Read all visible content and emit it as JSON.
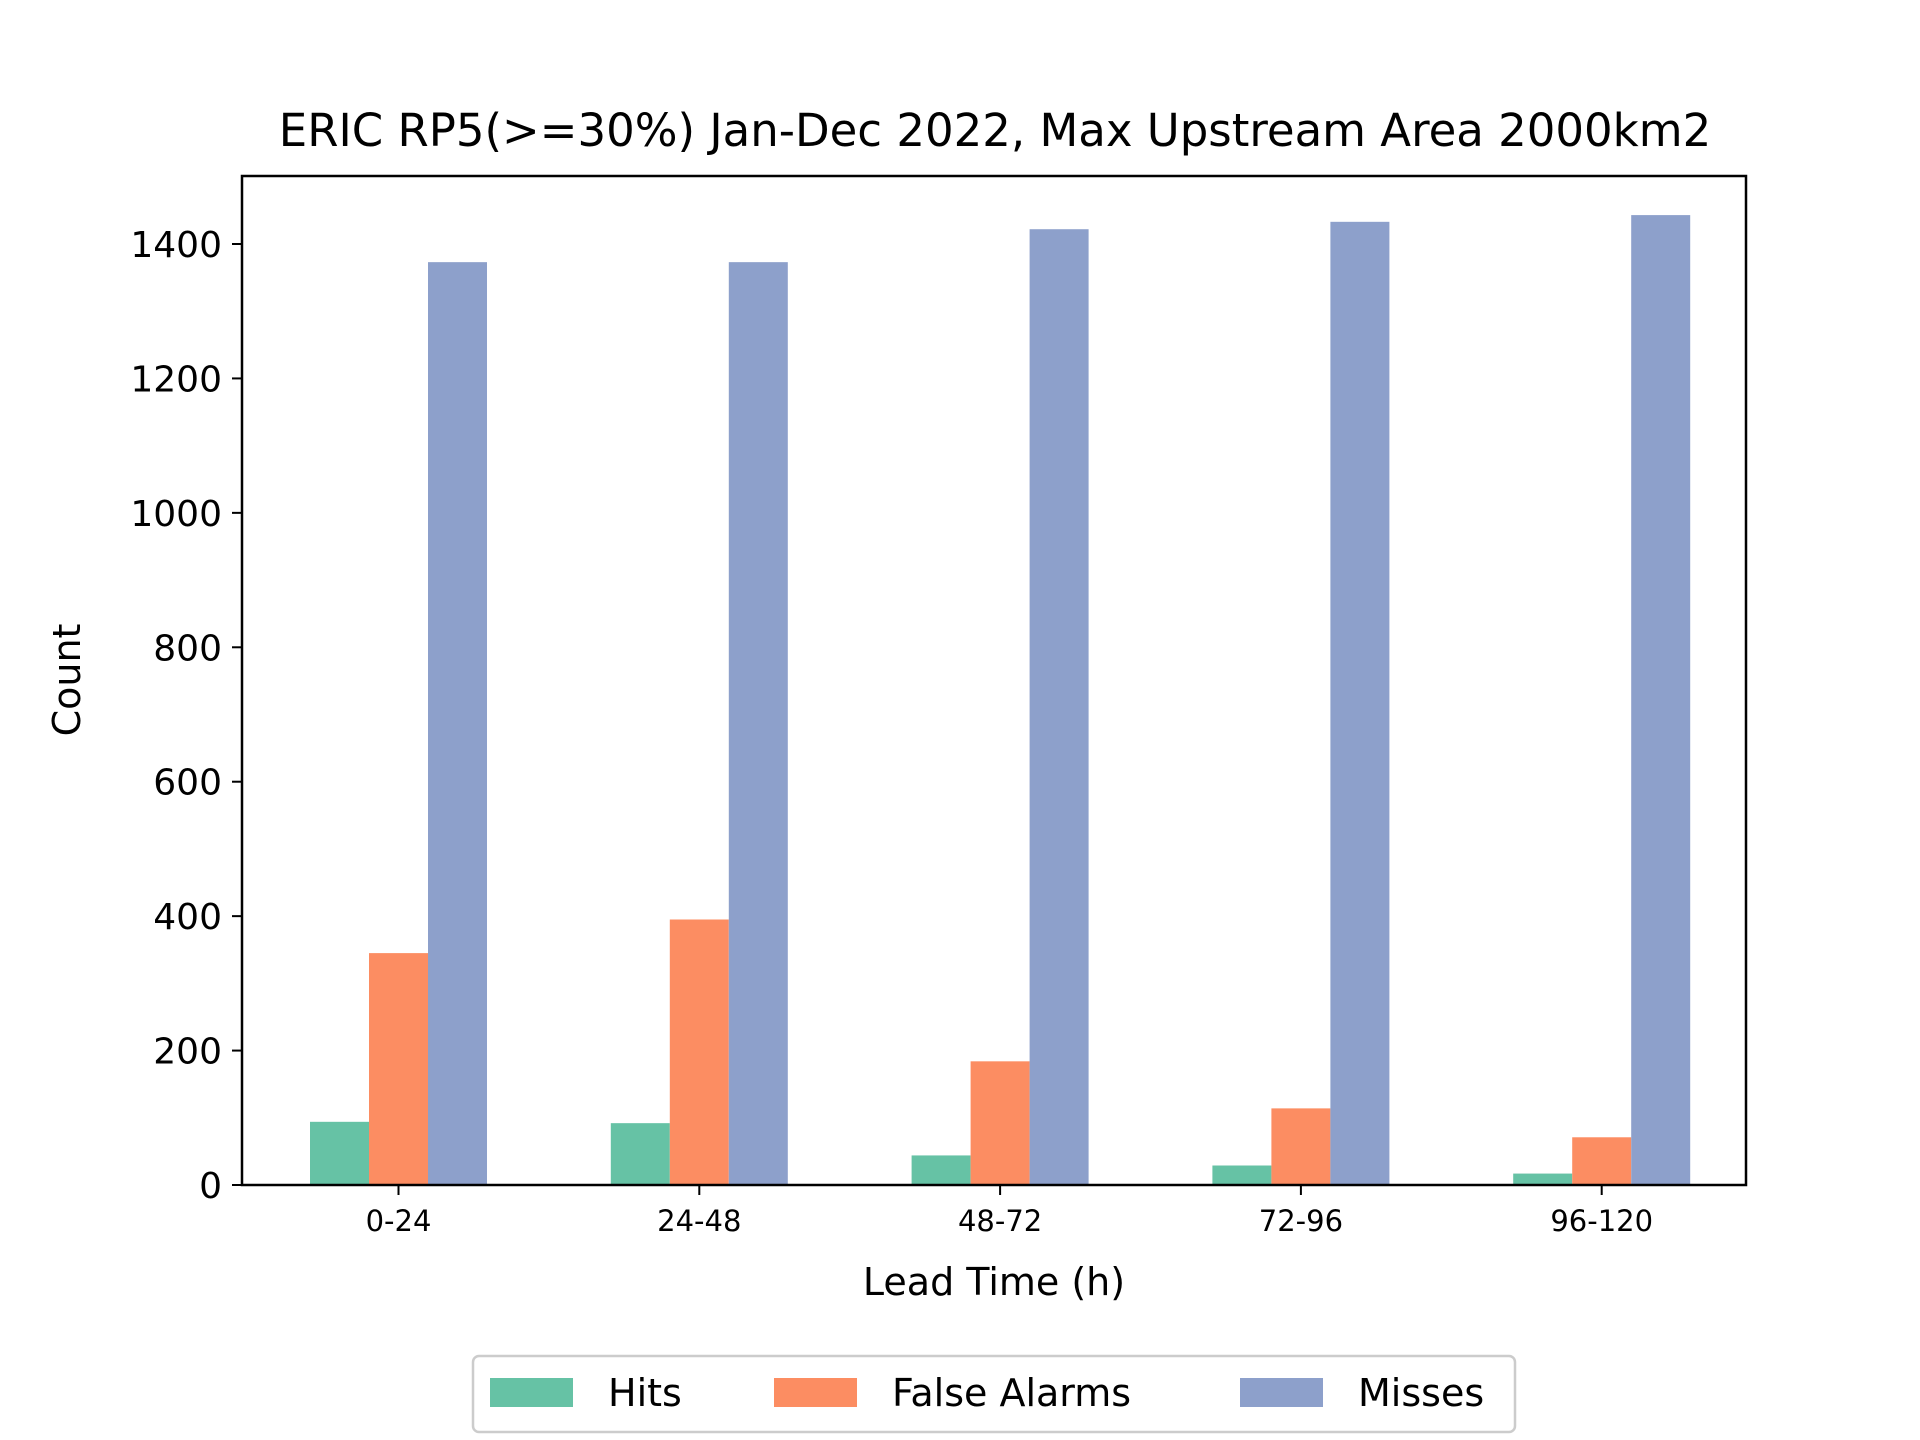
{
  "chart_data": {
    "type": "bar",
    "title": "ERIC RP5(>=30%) Jan-Dec 2022, Max Upstream Area 2000km2",
    "xlabel": "Lead Time (h)",
    "ylabel": "Count",
    "categories": [
      "0-24",
      "24-48",
      "48-72",
      "72-96",
      "96-120"
    ],
    "series": [
      {
        "name": "Hits",
        "color": "#66c2a5",
        "values": [
          94,
          92,
          44,
          29,
          17
        ]
      },
      {
        "name": "False Alarms",
        "color": "#fc8d62",
        "values": [
          345,
          395,
          184,
          114,
          71
        ]
      },
      {
        "name": "Misses",
        "color": "#8da0cb",
        "values": [
          1373,
          1373,
          1422,
          1433,
          1443
        ]
      }
    ],
    "ylim": [
      0,
      1500
    ],
    "yticks": [
      0,
      200,
      400,
      600,
      800,
      1000,
      1200,
      1400
    ],
    "grid": false,
    "legend_position": "bottom-center"
  }
}
